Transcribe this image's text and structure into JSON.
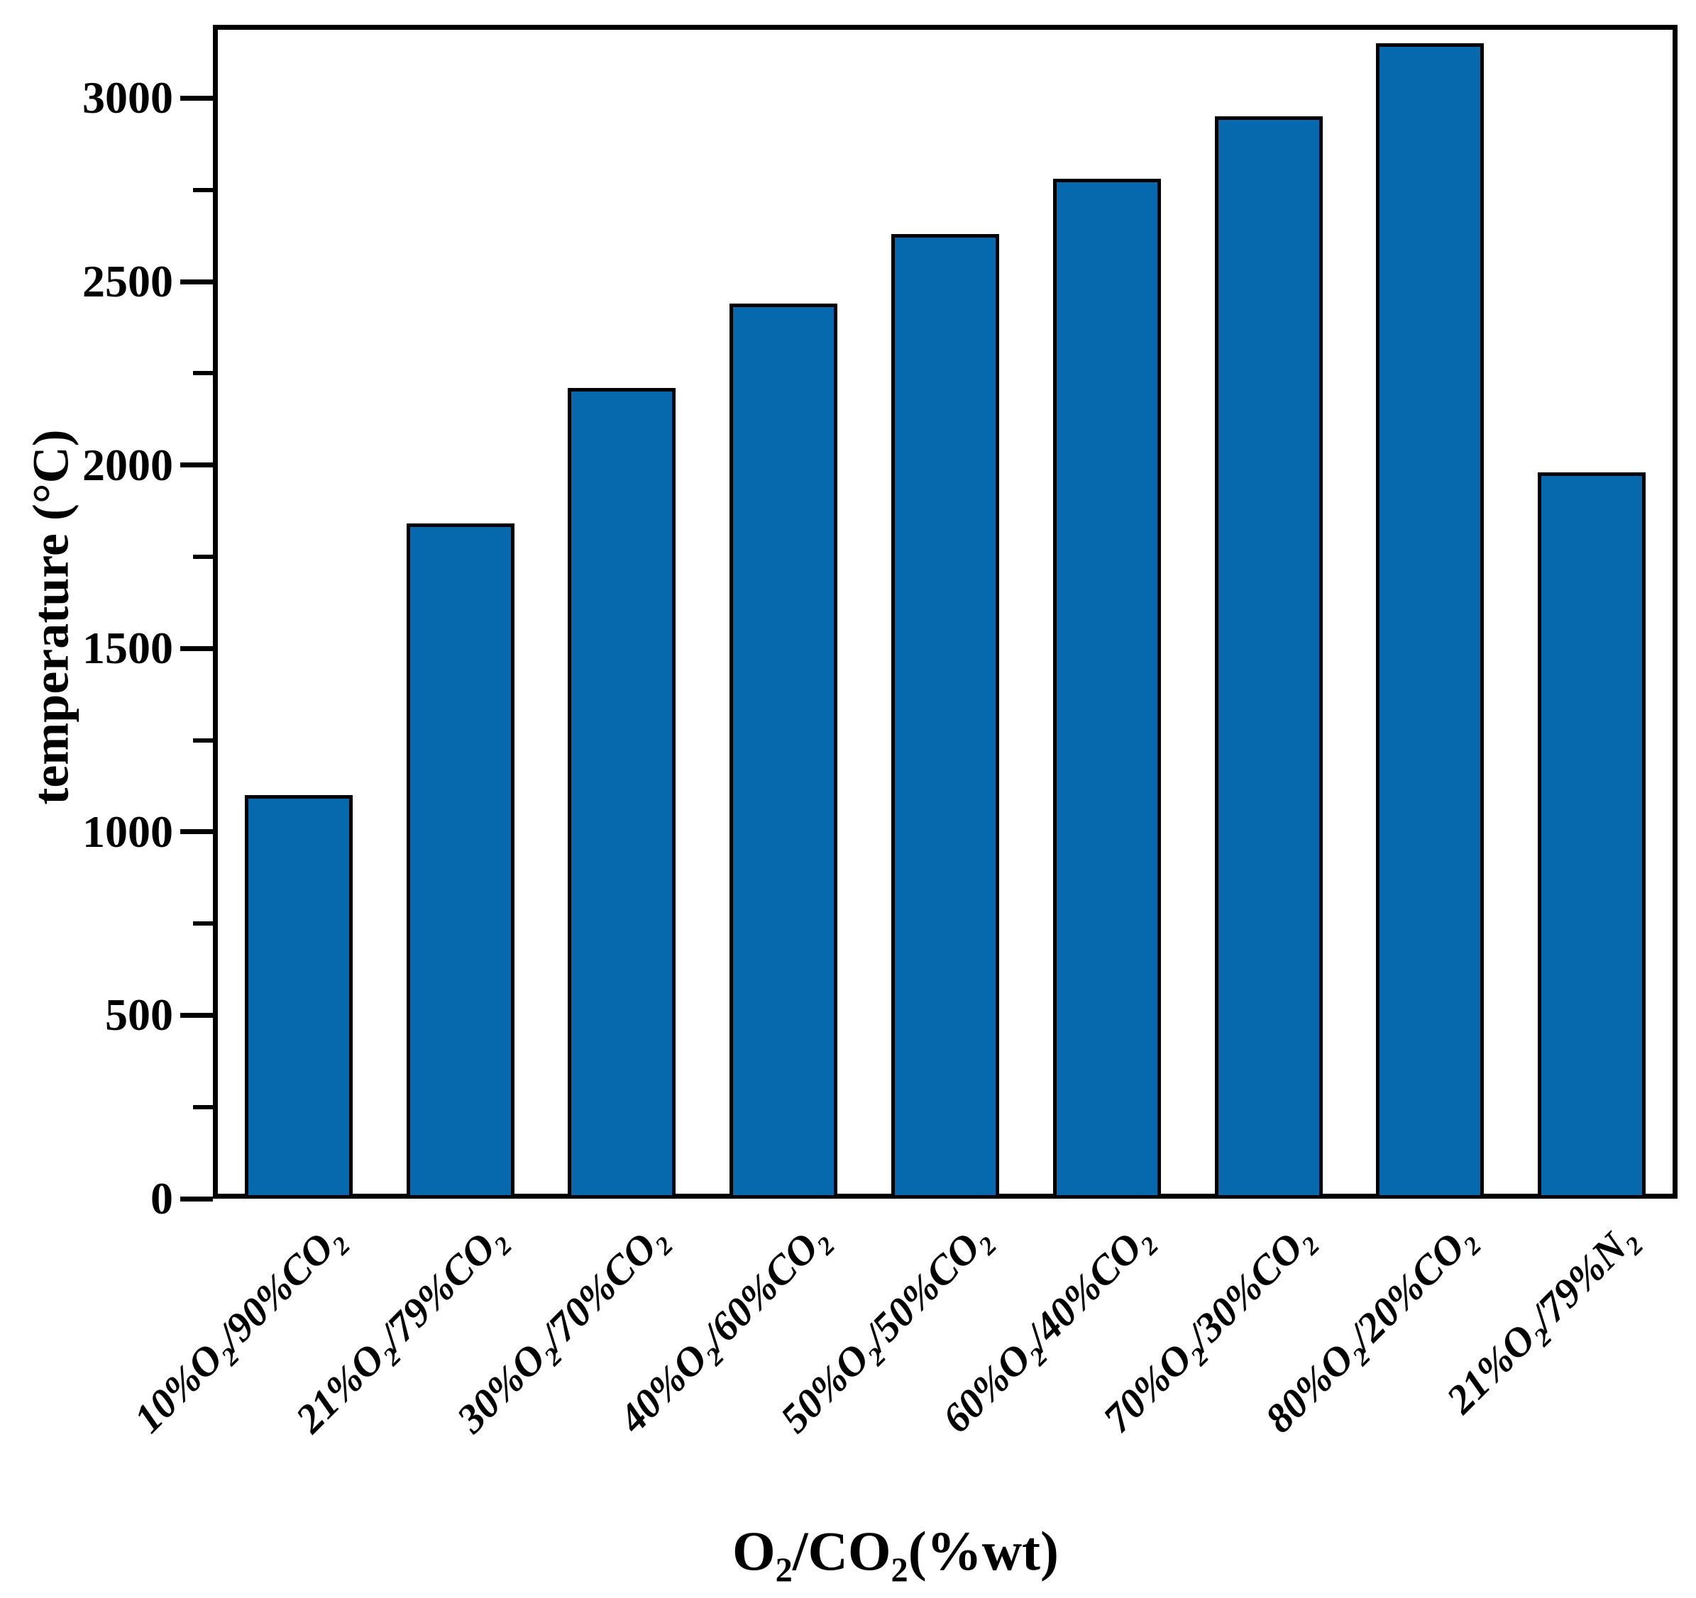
{
  "chart_data": {
    "type": "bar",
    "title": "",
    "xlabel": "O₂/CO₂(%wt)",
    "ylabel": "temperature (°C)",
    "categories": [
      "10%O₂/90%CO₂",
      "21%O₂/79%CO₂",
      "30%O₂/70%CO₂",
      "40%O₂/60%CO₂",
      "50%O₂/50%CO₂",
      "60%O₂/40%CO₂",
      "70%O₂/30%CO₂",
      "80%O₂/20%CO₂",
      "21%O₂/79%N₂"
    ],
    "values": [
      1100,
      1840,
      2210,
      2440,
      2630,
      2780,
      2950,
      3150,
      1980
    ],
    "ylim": [
      0,
      3200
    ],
    "y_major_ticks": [
      0,
      500,
      1000,
      1500,
      2000,
      2500,
      3000
    ],
    "y_tick_labels": [
      "0",
      "500",
      "1000",
      "1500",
      "2000",
      "2500",
      "3000"
    ],
    "y_minor_tick_interval": 250,
    "grid": false,
    "legend": null,
    "bar_color": "#0668AD",
    "bar_border_color": "#000000",
    "axis_color": "#000000",
    "background_color": "#FFFFFF"
  }
}
